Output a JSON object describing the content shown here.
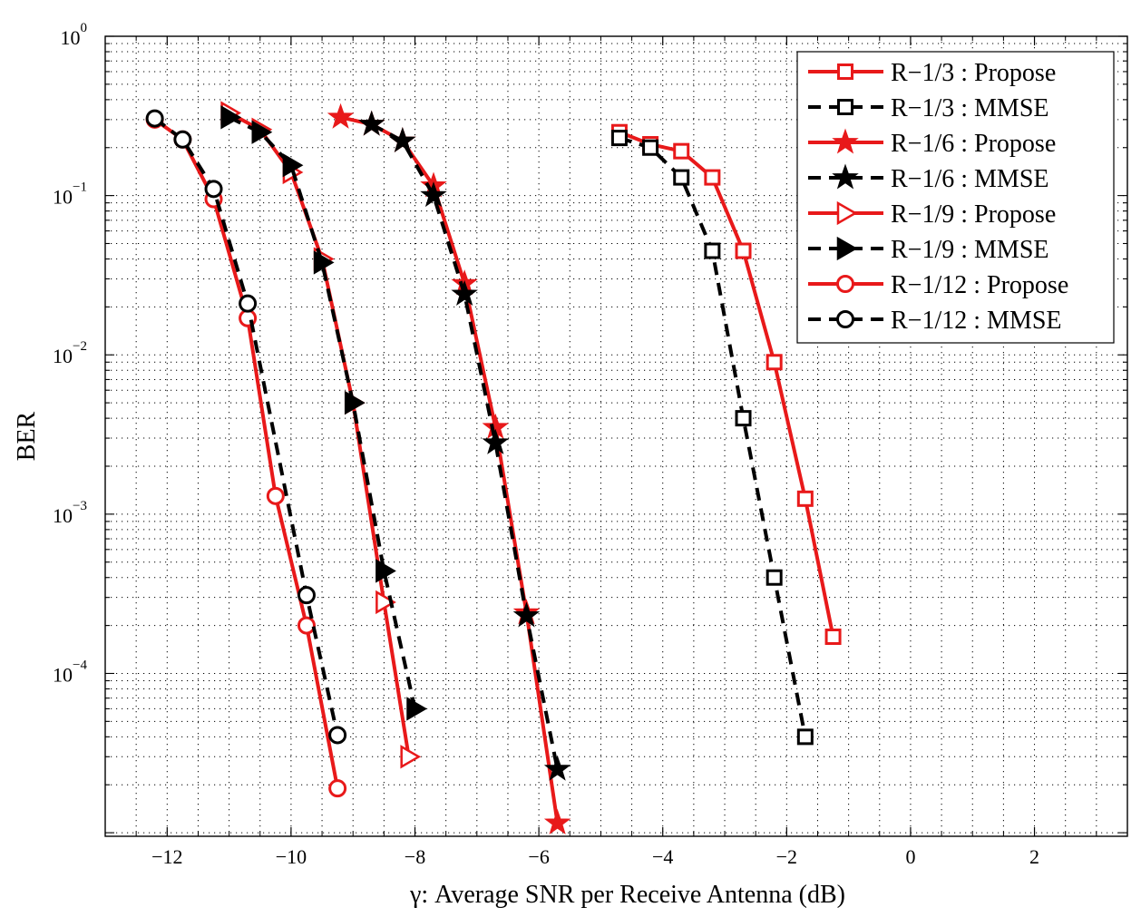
{
  "chart_data": {
    "type": "line",
    "xlabel_symbol": "γ",
    "xlabel": ":  Average SNR per Receive Antenna (dB)",
    "ylabel": "BER",
    "xscale": "linear",
    "yscale": "log",
    "xlim": [
      -13,
      3.5
    ],
    "ylim": [
      9.5e-06,
      1
    ],
    "xticks": [
      -12,
      -10,
      -8,
      -6,
      -4,
      -2,
      0,
      2
    ],
    "xtick_labels": [
      "−12",
      "−10",
      "−8",
      "−6",
      "−4",
      "−2",
      "0",
      "2"
    ],
    "yticks": [
      {
        "value": 1,
        "base": "10",
        "exp": "0"
      },
      {
        "value": 0.1,
        "base": "10",
        "exp": "−1"
      },
      {
        "value": 0.01,
        "base": "10",
        "exp": "−2"
      },
      {
        "value": 0.001,
        "base": "10",
        "exp": "−3"
      },
      {
        "value": 0.0001,
        "base": "10",
        "exp": "−4"
      }
    ],
    "grid": true,
    "legend_position": "top-right",
    "series": [
      {
        "name": "R−1/3 : Propose",
        "color": "#e8191a",
        "dash": false,
        "marker": "square",
        "x": [
          -4.7,
          -4.2,
          -3.7,
          -3.2,
          -2.7,
          -2.2,
          -1.7,
          -1.25
        ],
        "y": [
          0.25,
          0.21,
          0.19,
          0.13,
          0.045,
          0.009,
          0.00125,
          0.00017
        ]
      },
      {
        "name": "R−1/3 : MMSE",
        "color": "#000000",
        "dash": true,
        "marker": "square",
        "x": [
          -4.7,
          -4.2,
          -3.7,
          -3.2,
          -2.7,
          -2.2,
          -1.7
        ],
        "y": [
          0.23,
          0.2,
          0.13,
          0.045,
          0.004,
          0.0004,
          4e-05
        ]
      },
      {
        "name": "R−1/6 : Propose",
        "color": "#e8191a",
        "dash": false,
        "marker": "star",
        "x": [
          -9.2,
          -8.7,
          -8.2,
          -7.7,
          -7.2,
          -6.7,
          -6.2,
          -5.7
        ],
        "y": [
          0.31,
          0.28,
          0.22,
          0.115,
          0.028,
          0.0035,
          0.00024,
          1.15e-05
        ]
      },
      {
        "name": "R−1/6 : MMSE",
        "color": "#000000",
        "dash": true,
        "marker": "star",
        "x": [
          -8.7,
          -8.2,
          -7.7,
          -7.2,
          -6.7,
          -6.2,
          -5.7
        ],
        "y": [
          0.28,
          0.22,
          0.1,
          0.024,
          0.0028,
          0.00023,
          2.5e-05
        ]
      },
      {
        "name": "R−1/9 : Propose",
        "color": "#e8191a",
        "dash": false,
        "marker": "triangle-right",
        "x": [
          -11,
          -10.5,
          -10,
          -9.5,
          -9,
          -8.5,
          -8.1
        ],
        "y": [
          0.33,
          0.26,
          0.14,
          0.04,
          0.005,
          0.00028,
          3e-05
        ]
      },
      {
        "name": "R−1/9 : MMSE",
        "color": "#000000",
        "dash": true,
        "marker": "triangle-right",
        "x": [
          -11,
          -10.5,
          -10,
          -9.5,
          -9,
          -8.5,
          -8
        ],
        "y": [
          0.31,
          0.25,
          0.155,
          0.038,
          0.005,
          0.00044,
          6e-05
        ]
      },
      {
        "name": "R−1/12 : Propose",
        "color": "#e8191a",
        "dash": false,
        "marker": "circle",
        "x": [
          -12.2,
          -11.75,
          -11.25,
          -10.7,
          -10.25,
          -9.75,
          -9.25
        ],
        "y": [
          0.3,
          0.225,
          0.095,
          0.017,
          0.0013,
          0.0002,
          1.9e-05
        ]
      },
      {
        "name": "R−1/12 : MMSE",
        "color": "#000000",
        "dash": true,
        "marker": "circle",
        "x": [
          -12.2,
          -11.75,
          -11.25,
          -10.7,
          -9.75,
          -9.25
        ],
        "y": [
          0.305,
          0.225,
          0.11,
          0.021,
          0.00031,
          4.1e-05
        ]
      }
    ]
  }
}
